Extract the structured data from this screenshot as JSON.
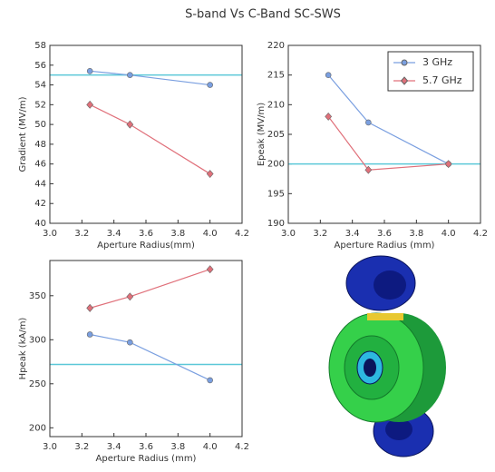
{
  "title": "S-band Vs C-Band SC-SWS",
  "chart_data": [
    {
      "type": "line",
      "xlabel": "Aperture Radius(mm)",
      "ylabel": "Gradient (MV/m)",
      "xlim": [
        3.0,
        4.2
      ],
      "xticks": [
        {
          "value": 3,
          "label": "3.0"
        },
        3.2,
        3.4,
        3.6,
        3.8,
        {
          "value": 4,
          "label": "4.0"
        },
        4.2
      ],
      "ylim": [
        40,
        58
      ],
      "yticks": [
        40,
        42,
        44,
        46,
        48,
        50,
        52,
        54,
        56,
        58
      ],
      "x": [
        3.25,
        3.5,
        4.0
      ],
      "reference_line": 55,
      "reference_color": "#5bc8d8",
      "series": [
        {
          "color": "#7a9fe0",
          "marker": "circle",
          "values": [
            55.4,
            55.0,
            54.0
          ]
        },
        {
          "color": "#e0707a",
          "marker": "diamond",
          "values": [
            52,
            50,
            45
          ]
        }
      ]
    },
    {
      "type": "line",
      "xlabel": "Aperture Radius (mm)",
      "ylabel": "Epeak (MV/m)",
      "xlim": [
        3.0,
        4.2
      ],
      "xticks": [
        {
          "value": 3,
          "label": "3.0"
        },
        3.2,
        3.4,
        3.6,
        3.8,
        {
          "value": 4,
          "label": "4.0"
        },
        4.2
      ],
      "ylim": [
        190,
        220
      ],
      "yticks": [
        190,
        195,
        200,
        205,
        210,
        215,
        220
      ],
      "x": [
        3.25,
        3.5,
        4.0
      ],
      "reference_line": 200,
      "reference_color": "#5bc8d8",
      "legend": "upper right",
      "series": [
        {
          "name": "3 GHz",
          "color": "#7a9fe0",
          "marker": "circle",
          "values": [
            215,
            207,
            200
          ]
        },
        {
          "name": "5.7 GHz",
          "color": "#e0707a",
          "marker": "diamond",
          "values": [
            208,
            199,
            200
          ]
        }
      ]
    },
    {
      "type": "line",
      "xlabel": "Aperture Radius (mm)",
      "ylabel": "Hpeak (kA/m)",
      "xlim": [
        3.0,
        4.2
      ],
      "xticks": [
        {
          "value": 3,
          "label": "3.0"
        },
        3.2,
        3.4,
        3.6,
        3.8,
        {
          "value": 4,
          "label": "4.0"
        },
        4.2
      ],
      "ylim": [
        190,
        390
      ],
      "yticks": [
        200,
        250,
        300,
        350
      ],
      "x": [
        3.25,
        3.5,
        4.0
      ],
      "reference_line": 272,
      "reference_color": "#5bc8d8",
      "series": [
        {
          "color": "#7a9fe0",
          "marker": "circle",
          "values": [
            306,
            297,
            254
          ]
        },
        {
          "color": "#e0707a",
          "marker": "diamond",
          "values": [
            336,
            349,
            380
          ]
        }
      ]
    }
  ]
}
